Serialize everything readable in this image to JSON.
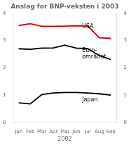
{
  "chart_data": {
    "type": "line",
    "title": "Anslag for BNP-veksten i 2003",
    "x_label": "2002",
    "categories": [
      "Jan",
      "Feb",
      "Mar",
      "Apr",
      "Mai",
      "Jun",
      "Jul",
      "Aug",
      "Sep"
    ],
    "series": [
      {
        "color": "#cc0000",
        "values": [
          3.55,
          3.62,
          3.52,
          3.52,
          3.53,
          3.54,
          3.53,
          3.1,
          3.08
        ]
      },
      {
        "color": "#000000",
        "values": [
          2.7,
          2.68,
          2.72,
          2.73,
          2.83,
          2.72,
          2.7,
          2.45,
          2.3
        ]
      },
      {
        "color": "#000000",
        "values": [
          0.72,
          0.68,
          1.02,
          1.08,
          1.1,
          1.1,
          1.08,
          1.05,
          1.0
        ]
      }
    ],
    "ylim": [
      0,
      4
    ],
    "yticks": [
      0,
      1,
      2,
      3,
      4
    ],
    "y2lim": [
      0,
      4
    ],
    "y2ticks": [
      0,
      1,
      2,
      3,
      4
    ],
    "annotations": [
      {
        "text": "USA",
        "x": 5.5,
        "y": 3.52
      },
      {
        "text": "Euro-\nområdet",
        "x": 5.5,
        "y": 2.52
      },
      {
        "text": "Japan",
        "x": 5.5,
        "y": 0.82
      }
    ],
    "grid": false
  }
}
